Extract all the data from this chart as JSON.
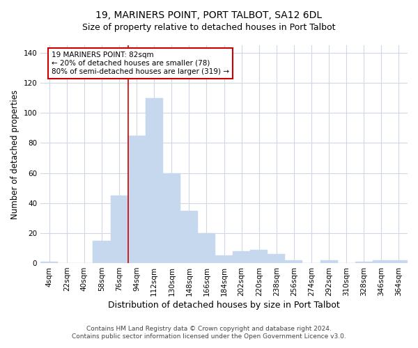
{
  "title": "19, MARINERS POINT, PORT TALBOT, SA12 6DL",
  "subtitle": "Size of property relative to detached houses in Port Talbot",
  "xlabel": "Distribution of detached houses by size in Port Talbot",
  "ylabel": "Number of detached properties",
  "footnote1": "Contains HM Land Registry data © Crown copyright and database right 2024.",
  "footnote2": "Contains public sector information licensed under the Open Government Licence v3.0.",
  "categories": [
    "4sqm",
    "22sqm",
    "40sqm",
    "58sqm",
    "76sqm",
    "94sqm",
    "112sqm",
    "130sqm",
    "148sqm",
    "166sqm",
    "184sqm",
    "202sqm",
    "220sqm",
    "238sqm",
    "256sqm",
    "274sqm",
    "292sqm",
    "310sqm",
    "328sqm",
    "346sqm",
    "364sqm"
  ],
  "values": [
    1,
    0,
    0,
    15,
    45,
    85,
    110,
    60,
    35,
    20,
    5,
    8,
    9,
    6,
    2,
    0,
    2,
    0,
    1,
    2,
    2
  ],
  "bar_color": "#c5d8ee",
  "bar_edge_color": "#c5d8ee",
  "vline_color": "#cc0000",
  "vline_x_index": 4.5,
  "annotation_line1": "19 MARINERS POINT: 82sqm",
  "annotation_line2": "← 20% of detached houses are smaller (78)",
  "annotation_line3": "80% of semi-detached houses are larger (319) →",
  "annotation_box_edgecolor": "#cc0000",
  "annotation_fill": "#ffffff",
  "ylim": [
    0,
    145
  ],
  "yticks": [
    0,
    20,
    40,
    60,
    80,
    100,
    120,
    140
  ],
  "bg_color": "#ffffff",
  "plot_bg_color": "#ffffff",
  "grid_color": "#d0d8e8",
  "title_fontsize": 10,
  "subtitle_fontsize": 9,
  "xlabel_fontsize": 9,
  "ylabel_fontsize": 8.5,
  "tick_fontsize": 7.5,
  "footnote_fontsize": 6.5,
  "annotation_fontsize": 7.5
}
